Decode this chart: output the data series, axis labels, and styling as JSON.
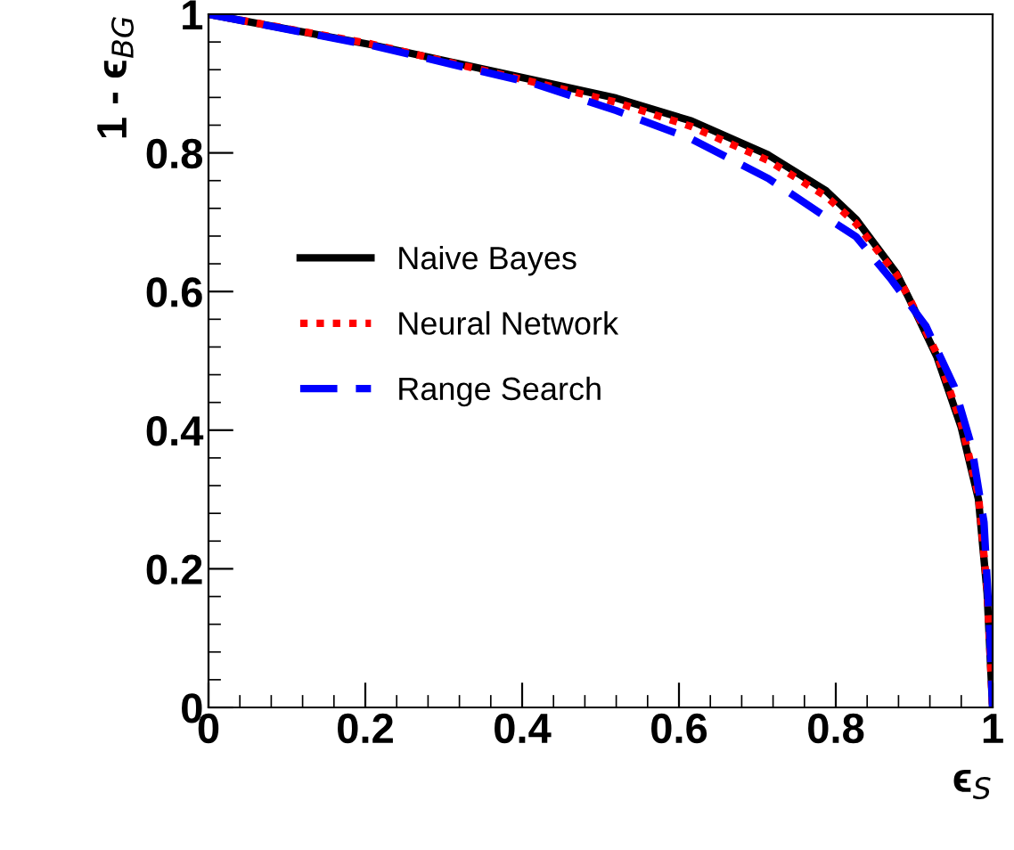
{
  "chart_data": {
    "type": "line",
    "xlabel": "ϵ$_{S}$",
    "ylabel": "1 - ϵ$_{BG}$",
    "xlim": [
      0,
      1
    ],
    "ylim": [
      0,
      1
    ],
    "xticks": [
      0,
      0.2,
      0.4,
      0.6,
      0.8,
      1
    ],
    "yticks": [
      0,
      0.2,
      0.4,
      0.6,
      0.8,
      1
    ],
    "grid": false,
    "legend": "left",
    "series": [
      {
        "name": "Naive Bayes",
        "color": "#000000",
        "line_style": "solid",
        "x": [
          0,
          0.208,
          0.415,
          0.52,
          0.616,
          0.714,
          0.788,
          0.826,
          0.877,
          0.893,
          0.929,
          0.96,
          0.982,
          0.993,
          1.0
        ],
        "values": [
          1,
          0.956,
          0.905,
          0.879,
          0.846,
          0.797,
          0.745,
          0.704,
          0.627,
          0.591,
          0.506,
          0.404,
          0.3,
          0.165,
          0
        ]
      },
      {
        "name": "Neural Network",
        "color": "#ff0000",
        "line_style": "dotted",
        "x": [
          0,
          0.208,
          0.415,
          0.52,
          0.616,
          0.714,
          0.788,
          0.826,
          0.877,
          0.893,
          0.929,
          0.96,
          0.982,
          0.993,
          1.0
        ],
        "values": [
          1,
          0.957,
          0.902,
          0.873,
          0.838,
          0.789,
          0.737,
          0.698,
          0.625,
          0.592,
          0.51,
          0.41,
          0.305,
          0.17,
          0
        ]
      },
      {
        "name": "Range Search",
        "color": "#0000ff",
        "line_style": "dashed",
        "x": [
          0,
          0.208,
          0.415,
          0.52,
          0.616,
          0.714,
          0.788,
          0.826,
          0.871,
          0.915,
          0.951,
          0.973,
          0.989,
          0.996,
          1.0
        ],
        "values": [
          1,
          0.955,
          0.9,
          0.861,
          0.82,
          0.763,
          0.707,
          0.679,
          0.617,
          0.55,
          0.463,
          0.378,
          0.267,
          0.121,
          0
        ]
      }
    ]
  }
}
